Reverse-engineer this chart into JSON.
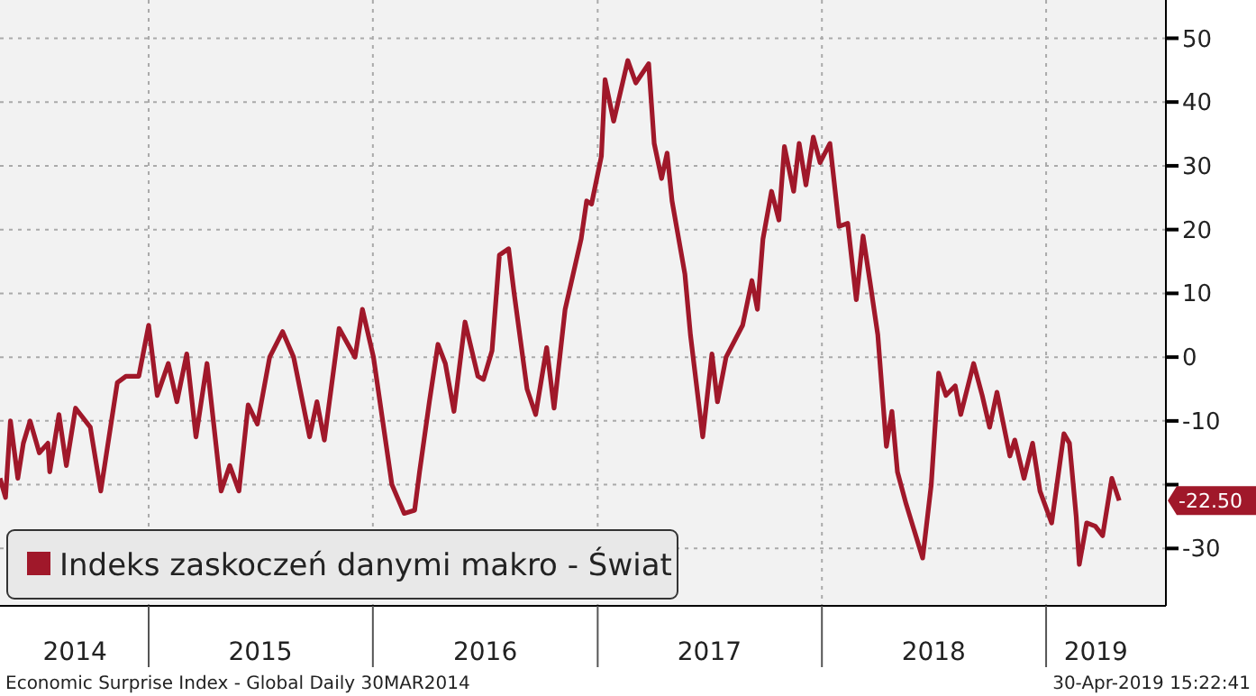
{
  "chart_data": {
    "type": "line",
    "xlim": [
      "2014-05-04",
      "2019-07-15"
    ],
    "ylim": [
      -39,
      56
    ],
    "xticks": [
      {
        "value": "2014-09-03",
        "label": "2014"
      },
      {
        "value": "2015-01-01",
        "label": null
      },
      {
        "value": "2015-07-02",
        "label": "2015"
      },
      {
        "value": "2016-01-01",
        "label": null
      },
      {
        "value": "2016-07-02",
        "label": "2016"
      },
      {
        "value": "2017-01-01",
        "label": null
      },
      {
        "value": "2017-07-02",
        "label": "2017"
      },
      {
        "value": "2018-01-01",
        "label": null
      },
      {
        "value": "2018-07-02",
        "label": "2018"
      },
      {
        "value": "2019-01-01",
        "label": null
      },
      {
        "value": "2019-03-23",
        "label": "2019"
      }
    ],
    "yticks": [
      -30,
      {
        "value": -20,
        "label": null
      },
      -10,
      0,
      10,
      20,
      30,
      40,
      50
    ],
    "grid": true,
    "legend": "bottom left",
    "line_style": "solid",
    "annotations": [
      "-22.50",
      "Economic Surprise Index - Global  Daily 30MAR2014",
      "30-Apr-2019 15:22:41"
    ],
    "series": [
      {
        "name": "Indeks zaskoczeń danymi makro - Świat",
        "color": "#a0182a",
        "x": [
          "2014-05-04",
          "2014-05-13",
          "2014-05-21",
          "2014-06-02",
          "2014-06-11",
          "2014-06-22",
          "2014-07-07",
          "2014-07-21",
          "2014-07-24",
          "2014-08-08",
          "2014-08-20",
          "2014-09-04",
          "2014-09-28",
          "2014-10-15",
          "2014-11-11",
          "2014-11-25",
          "2014-12-16",
          "2015-01-01",
          "2015-01-15",
          "2015-02-02",
          "2015-02-16",
          "2015-03-04",
          "2015-03-19",
          "2015-04-06",
          "2015-04-29",
          "2015-05-13",
          "2015-05-28",
          "2015-06-12",
          "2015-06-27",
          "2015-07-17",
          "2015-08-07",
          "2015-08-25",
          "2015-09-20",
          "2015-10-02",
          "2015-10-14",
          "2015-11-07",
          "2015-12-03",
          "2015-12-15",
          "2016-01-02",
          "2016-02-01",
          "2016-02-21",
          "2016-03-09",
          "2016-03-17",
          "2016-04-02",
          "2016-04-16",
          "2016-04-28",
          "2016-05-12",
          "2016-05-30",
          "2016-06-20",
          "2016-06-29",
          "2016-07-13",
          "2016-07-25",
          "2016-08-09",
          "2016-08-18",
          "2016-09-08",
          "2016-09-22",
          "2016-10-10",
          "2016-10-22",
          "2016-11-09",
          "2016-12-05",
          "2016-12-14",
          "2016-12-22",
          "2017-01-07",
          "2017-01-13",
          "2017-01-27",
          "2017-02-19",
          "2017-03-04",
          "2017-03-25",
          "2017-04-03",
          "2017-04-15",
          "2017-04-24",
          "2017-05-02",
          "2017-05-23",
          "2017-06-01",
          "2017-06-21",
          "2017-07-06",
          "2017-07-15",
          "2017-07-29",
          "2017-08-25",
          "2017-09-09",
          "2017-09-18",
          "2017-09-27",
          "2017-10-11",
          "2017-10-23",
          "2017-11-01",
          "2017-11-16",
          "2017-11-25",
          "2017-12-06",
          "2017-12-18",
          "2017-12-29",
          "2018-01-14",
          "2018-01-29",
          "2018-02-12",
          "2018-02-26",
          "2018-03-09",
          "2018-03-20",
          "2018-04-02",
          "2018-04-16",
          "2018-04-25",
          "2018-05-04",
          "2018-05-18",
          "2018-06-14",
          "2018-06-28",
          "2018-07-10",
          "2018-07-22",
          "2018-08-06",
          "2018-08-15",
          "2018-09-05",
          "2018-09-19",
          "2018-10-01",
          "2018-10-13",
          "2018-11-03",
          "2018-11-11",
          "2018-11-26",
          "2018-12-10",
          "2018-12-22",
          "2019-01-10",
          "2019-01-30",
          "2019-02-08",
          "2019-02-19",
          "2019-02-24",
          "2019-03-08",
          "2019-03-22",
          "2019-04-03",
          "2019-04-18",
          "2019-04-30"
        ],
        "values": [
          -19,
          -22,
          -10,
          -19,
          -13.5,
          -10,
          -15,
          -13.5,
          -18,
          -9,
          -17,
          -8,
          -11,
          -21,
          -4,
          -3,
          -3,
          5,
          -6,
          -1,
          -7,
          0.5,
          -12.5,
          -1,
          -21,
          -17,
          -21,
          -7.5,
          -10.5,
          0,
          4,
          0,
          -12.5,
          -7,
          -13,
          4.5,
          0,
          7.5,
          0,
          -20,
          -24.5,
          -24,
          -18,
          -7,
          2,
          -1,
          -8.5,
          5.5,
          -3,
          -3.5,
          1,
          16,
          17,
          10,
          -5,
          -9,
          1.5,
          -8,
          7.5,
          18.5,
          24.5,
          24,
          31.5,
          43.5,
          37,
          46.5,
          43,
          46,
          33.5,
          28,
          32,
          24.5,
          13,
          3.5,
          -12.5,
          0.5,
          -7,
          0,
          5,
          12,
          7.5,
          18.5,
          26,
          21.5,
          33,
          26,
          33.5,
          27,
          34.5,
          30.5,
          33.5,
          20.5,
          21,
          9,
          19,
          12,
          3.5,
          -14,
          -8.5,
          -18,
          -23,
          -31.5,
          -20,
          -2.5,
          -6,
          -4.5,
          -9,
          -1,
          -6,
          -11,
          -5.5,
          -15.5,
          -13,
          -19,
          -13.5,
          -21,
          -26,
          -12,
          -13.5,
          -25,
          -32.5,
          -26,
          -26.5,
          -28,
          -19,
          -22.5
        ]
      }
    ]
  }
}
